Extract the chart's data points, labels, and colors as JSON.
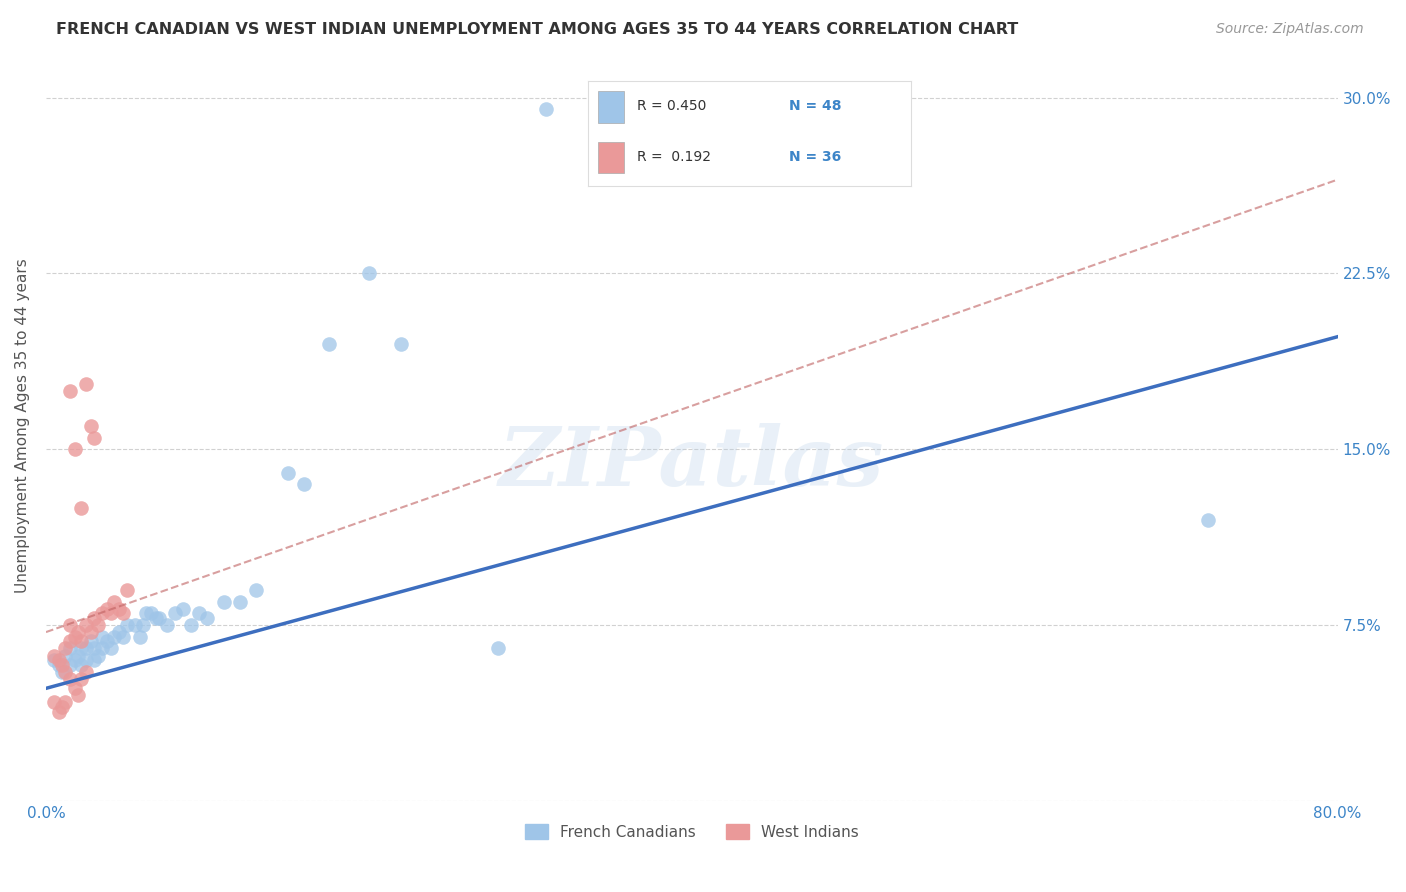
{
  "title": "FRENCH CANADIAN VS WEST INDIAN UNEMPLOYMENT AMONG AGES 35 TO 44 YEARS CORRELATION CHART",
  "source": "Source: ZipAtlas.com",
  "ylabel": "Unemployment Among Ages 35 to 44 years",
  "xlim": [
    0.0,
    0.8
  ],
  "ylim": [
    0.0,
    0.32
  ],
  "xticks": [
    0.0,
    0.1,
    0.2,
    0.3,
    0.4,
    0.5,
    0.6,
    0.7,
    0.8
  ],
  "xticklabels": [
    "0.0%",
    "",
    "",
    "",
    "",
    "",
    "",
    "",
    "80.0%"
  ],
  "yticks": [
    0.0,
    0.075,
    0.15,
    0.225,
    0.3
  ],
  "yticklabels_right": [
    "",
    "7.5%",
    "15.0%",
    "22.5%",
    "30.0%"
  ],
  "blue_color": "#9fc5e8",
  "pink_color": "#ea9999",
  "blue_line_color": "#3d6ebf",
  "pink_line_color": "#bf6060",
  "tick_label_color": "#3d85c8",
  "grid_color": "#cccccc",
  "background_color": "#ffffff",
  "watermark_text": "ZIPatlas",
  "blue_line_x0": 0.0,
  "blue_line_y0": 0.048,
  "blue_line_x1": 0.8,
  "blue_line_y1": 0.198,
  "pink_line_x0": 0.0,
  "pink_line_y0": 0.072,
  "pink_line_x1": 0.8,
  "pink_line_y1": 0.265,
  "blue_scatter_x": [
    0.005,
    0.008,
    0.01,
    0.012,
    0.015,
    0.015,
    0.018,
    0.02,
    0.022,
    0.022,
    0.025,
    0.025,
    0.028,
    0.03,
    0.03,
    0.032,
    0.035,
    0.035,
    0.038,
    0.04,
    0.042,
    0.045,
    0.048,
    0.05,
    0.055,
    0.058,
    0.06,
    0.062,
    0.065,
    0.068,
    0.07,
    0.075,
    0.08,
    0.085,
    0.09,
    0.095,
    0.1,
    0.11,
    0.12,
    0.13,
    0.15,
    0.16,
    0.175,
    0.2,
    0.22,
    0.28,
    0.31,
    0.72
  ],
  "blue_scatter_y": [
    0.06,
    0.058,
    0.055,
    0.062,
    0.058,
    0.065,
    0.06,
    0.062,
    0.058,
    0.065,
    0.06,
    0.065,
    0.068,
    0.06,
    0.065,
    0.062,
    0.065,
    0.07,
    0.068,
    0.065,
    0.07,
    0.072,
    0.07,
    0.075,
    0.075,
    0.07,
    0.075,
    0.08,
    0.08,
    0.078,
    0.078,
    0.075,
    0.08,
    0.082,
    0.075,
    0.08,
    0.078,
    0.085,
    0.085,
    0.09,
    0.14,
    0.135,
    0.195,
    0.225,
    0.195,
    0.065,
    0.295,
    0.12
  ],
  "pink_scatter_x": [
    0.005,
    0.008,
    0.01,
    0.012,
    0.015,
    0.015,
    0.018,
    0.02,
    0.022,
    0.025,
    0.028,
    0.03,
    0.032,
    0.035,
    0.038,
    0.04,
    0.042,
    0.045,
    0.048,
    0.05,
    0.005,
    0.008,
    0.01,
    0.012,
    0.012,
    0.015,
    0.018,
    0.02,
    0.022,
    0.025,
    0.028,
    0.03,
    0.015,
    0.018,
    0.022,
    0.025
  ],
  "pink_scatter_y": [
    0.062,
    0.06,
    0.058,
    0.065,
    0.068,
    0.075,
    0.07,
    0.072,
    0.068,
    0.075,
    0.072,
    0.078,
    0.075,
    0.08,
    0.082,
    0.08,
    0.085,
    0.082,
    0.08,
    0.09,
    0.042,
    0.038,
    0.04,
    0.042,
    0.055,
    0.052,
    0.048,
    0.045,
    0.052,
    0.055,
    0.16,
    0.155,
    0.175,
    0.15,
    0.125,
    0.178
  ]
}
